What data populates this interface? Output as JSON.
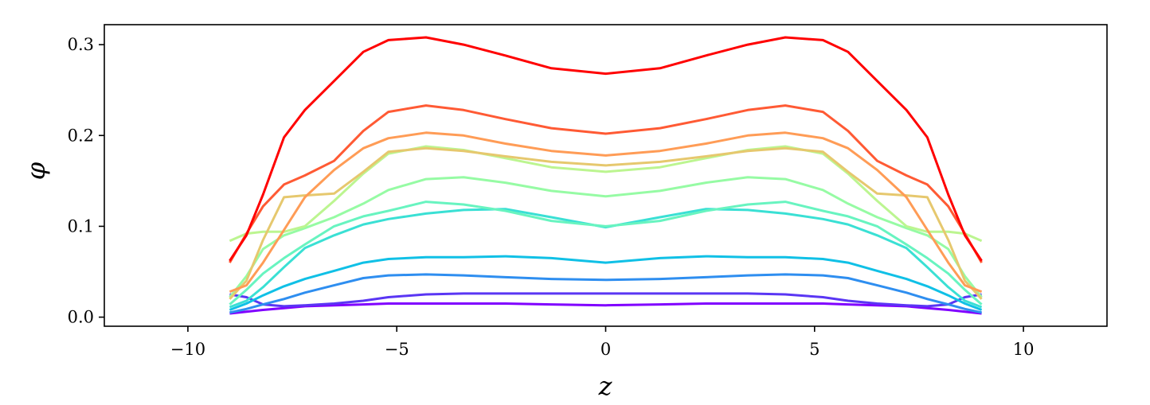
{
  "chart_data": {
    "type": "line",
    "title": "",
    "xlabel": "z",
    "ylabel": "φ",
    "xlim": [
      -12,
      12
    ],
    "ylim": [
      -0.01,
      0.322
    ],
    "xticks": [
      -10,
      -5,
      0,
      5,
      10
    ],
    "xtick_labels": [
      "−10",
      "−5",
      "0",
      "5",
      "10"
    ],
    "yticks": [
      0.0,
      0.1,
      0.2,
      0.3
    ],
    "ytick_labels": [
      "0.0",
      "0.1",
      "0.2",
      "0.3"
    ],
    "grid": false,
    "legend": "none",
    "x": [
      -9,
      -8.6,
      -8.2,
      -7.7,
      -7.2,
      -6.5,
      -5.8,
      -5.2,
      -4.3,
      -3.4,
      -2.4,
      -1.3,
      0,
      1.3,
      2.4,
      3.4,
      4.3,
      5.2,
      5.8,
      6.5,
      7.2,
      7.7,
      8.2,
      8.6,
      9
    ],
    "series": [
      {
        "color": "#8000ff",
        "values": [
          0.004,
          0.006,
          0.008,
          0.01,
          0.012,
          0.013,
          0.014,
          0.015,
          0.015,
          0.015,
          0.015,
          0.014,
          0.013,
          0.014,
          0.015,
          0.015,
          0.015,
          0.015,
          0.014,
          0.013,
          0.012,
          0.01,
          0.008,
          0.006,
          0.004
        ]
      },
      {
        "color": "#5a36f4",
        "values": [
          0.025,
          0.022,
          0.014,
          0.012,
          0.013,
          0.015,
          0.018,
          0.022,
          0.025,
          0.026,
          0.026,
          0.026,
          0.026,
          0.026,
          0.026,
          0.026,
          0.025,
          0.022,
          0.018,
          0.015,
          0.013,
          0.012,
          0.014,
          0.022,
          0.025
        ]
      },
      {
        "color": "#2e8ef0",
        "values": [
          0.005,
          0.009,
          0.014,
          0.02,
          0.027,
          0.035,
          0.043,
          0.046,
          0.047,
          0.046,
          0.044,
          0.042,
          0.041,
          0.042,
          0.044,
          0.046,
          0.047,
          0.046,
          0.043,
          0.035,
          0.027,
          0.02,
          0.014,
          0.009,
          0.005
        ]
      },
      {
        "color": "#10c0e6",
        "values": [
          0.008,
          0.015,
          0.024,
          0.034,
          0.042,
          0.051,
          0.06,
          0.064,
          0.066,
          0.066,
          0.067,
          0.065,
          0.06,
          0.065,
          0.067,
          0.066,
          0.066,
          0.064,
          0.06,
          0.051,
          0.042,
          0.034,
          0.024,
          0.015,
          0.008
        ]
      },
      {
        "color": "#3ae0d4",
        "values": [
          0.011,
          0.018,
          0.033,
          0.055,
          0.076,
          0.09,
          0.102,
          0.108,
          0.114,
          0.118,
          0.119,
          0.11,
          0.099,
          0.11,
          0.119,
          0.118,
          0.114,
          0.108,
          0.102,
          0.09,
          0.076,
          0.055,
          0.033,
          0.018,
          0.011
        ]
      },
      {
        "color": "#68f4c0",
        "values": [
          0.014,
          0.03,
          0.048,
          0.065,
          0.08,
          0.1,
          0.111,
          0.117,
          0.127,
          0.124,
          0.117,
          0.106,
          0.1,
          0.106,
          0.117,
          0.124,
          0.127,
          0.117,
          0.111,
          0.1,
          0.08,
          0.065,
          0.048,
          0.03,
          0.014
        ]
      },
      {
        "color": "#96fba4",
        "values": [
          0.022,
          0.045,
          0.075,
          0.09,
          0.098,
          0.11,
          0.125,
          0.14,
          0.152,
          0.154,
          0.148,
          0.139,
          0.133,
          0.139,
          0.148,
          0.154,
          0.152,
          0.14,
          0.125,
          0.11,
          0.098,
          0.09,
          0.075,
          0.045,
          0.022
        ]
      },
      {
        "color": "#bcf590",
        "values": [
          0.084,
          0.092,
          0.094,
          0.094,
          0.1,
          0.128,
          0.158,
          0.18,
          0.188,
          0.184,
          0.175,
          0.165,
          0.16,
          0.165,
          0.175,
          0.184,
          0.188,
          0.18,
          0.158,
          0.128,
          0.1,
          0.094,
          0.094,
          0.092,
          0.084
        ]
      },
      {
        "color": "#e6c86e",
        "values": [
          0.02,
          0.04,
          0.085,
          0.132,
          0.134,
          0.136,
          0.16,
          0.182,
          0.186,
          0.183,
          0.177,
          0.171,
          0.167,
          0.171,
          0.177,
          0.183,
          0.186,
          0.182,
          0.16,
          0.136,
          0.134,
          0.132,
          0.085,
          0.04,
          0.02
        ]
      },
      {
        "color": "#ff9c56",
        "values": [
          0.028,
          0.035,
          0.06,
          0.096,
          0.132,
          0.162,
          0.186,
          0.197,
          0.203,
          0.2,
          0.191,
          0.183,
          0.178,
          0.183,
          0.191,
          0.2,
          0.203,
          0.197,
          0.186,
          0.162,
          0.132,
          0.096,
          0.06,
          0.035,
          0.028
        ]
      },
      {
        "color": "#ff5a34",
        "values": [
          0.06,
          0.092,
          0.122,
          0.146,
          0.156,
          0.172,
          0.205,
          0.226,
          0.233,
          0.228,
          0.218,
          0.208,
          0.202,
          0.208,
          0.218,
          0.228,
          0.233,
          0.226,
          0.205,
          0.172,
          0.156,
          0.146,
          0.122,
          0.092,
          0.06
        ]
      },
      {
        "color": "#ff0000",
        "values": [
          0.062,
          0.09,
          0.135,
          0.198,
          0.228,
          0.26,
          0.292,
          0.305,
          0.308,
          0.3,
          0.288,
          0.274,
          0.268,
          0.274,
          0.288,
          0.3,
          0.308,
          0.305,
          0.292,
          0.26,
          0.228,
          0.198,
          0.135,
          0.09,
          0.062
        ]
      }
    ]
  }
}
